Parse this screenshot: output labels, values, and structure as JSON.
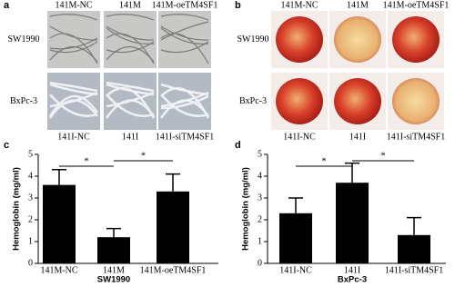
{
  "panels": [
    {
      "label": "a",
      "columns": [
        "141M-NC",
        "141M",
        "141M-oeTM4SF1"
      ],
      "rows": [
        "SW1990",
        "BxPc-3"
      ],
      "bottom_columns": [
        "141I-NC",
        "141I",
        "141I-siTM4SF1"
      ]
    },
    {
      "label": "b",
      "columns": [
        "141M-NC",
        "141M",
        "141M-oeTM4SF1"
      ],
      "rows": [
        "SW1990",
        "BxPc-3"
      ],
      "bottom_columns": [
        "141I-NC",
        "141I",
        "141I-siTM4SF1"
      ]
    }
  ],
  "chart_data": [
    {
      "type": "bar",
      "panel_label": "c",
      "y_label": "Hemoglobin (mg/ml)",
      "x_label": "SW1990",
      "categories": [
        "141M-NC",
        "141M",
        "141M-oeTM4SF1"
      ],
      "values": [
        3.6,
        1.2,
        3.3
      ],
      "errors": [
        0.7,
        0.4,
        0.8
      ],
      "color": "#000000",
      "ylim": [
        0,
        5
      ],
      "yticks": [
        0,
        1,
        2,
        3,
        4,
        5
      ],
      "annotations": [
        "*",
        "*"
      ]
    },
    {
      "type": "bar",
      "panel_label": "d",
      "y_label": "Hemoglobin (mg/ml)",
      "x_label": "BxPc-3",
      "categories": [
        "141I-NC",
        "141I",
        "141I-siTM4SF1"
      ],
      "values": [
        2.3,
        3.7,
        1.3
      ],
      "errors": [
        0.7,
        0.9,
        0.8
      ],
      "color": "#000000",
      "ylim": [
        0,
        5
      ],
      "yticks": [
        0,
        1,
        2,
        3,
        4,
        5
      ],
      "annotations": [
        "*",
        "*"
      ]
    }
  ]
}
